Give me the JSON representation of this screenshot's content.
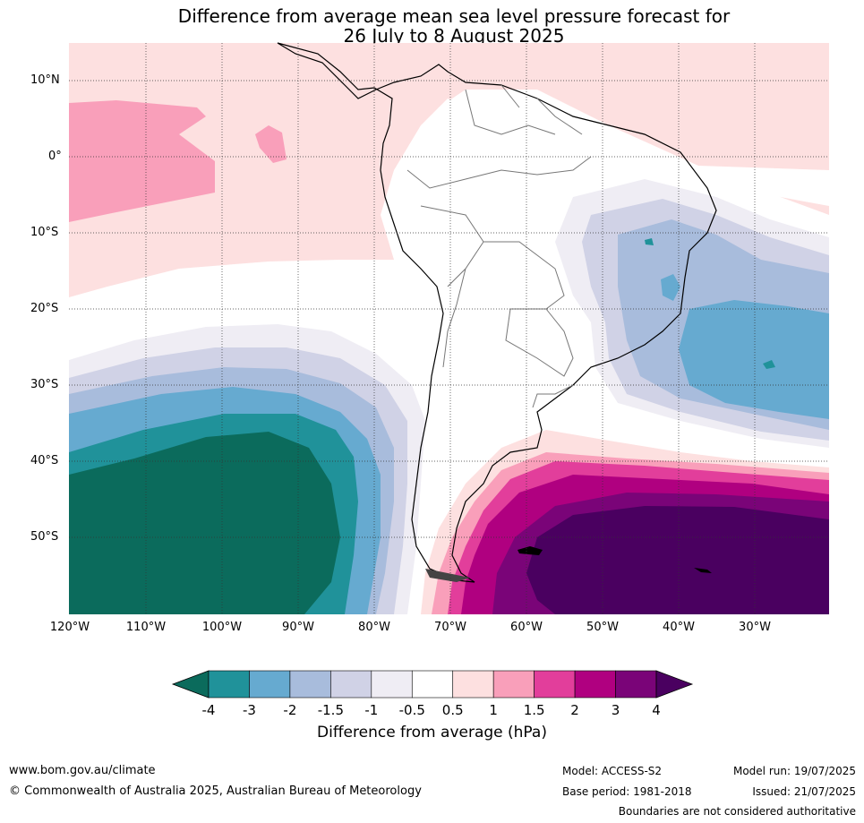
{
  "title_line1": "Difference from average mean sea level pressure forecast for",
  "title_line2": "26 July to 8 August 2025",
  "lat_labels": [
    "10°N",
    "0°",
    "10°S",
    "20°S",
    "30°S",
    "40°S",
    "50°S"
  ],
  "lon_labels": [
    "120°W",
    "110°W",
    "100°W",
    "90°W",
    "80°W",
    "70°W",
    "60°W",
    "50°W",
    "40°W",
    "30°W"
  ],
  "colorbar": {
    "title": "Difference from average (hPa)",
    "tick_labels": [
      "-4",
      "-3",
      "-2",
      "-1.5",
      "-1",
      "-0.5",
      "0.5",
      "1",
      "1.5",
      "2",
      "3",
      "4"
    ],
    "colors": [
      "#0b6b5c",
      "#20929a",
      "#66aad0",
      "#a8bcdc",
      "#d0d2e6",
      "#efedf4",
      "#ffffff",
      "#fde0e0",
      "#f99fba",
      "#e23e9b",
      "#b00080",
      "#7a0478",
      "#4a0060"
    ]
  },
  "footer": {
    "website": "www.bom.gov.au/climate",
    "copyright": "© Commonwealth of Australia 2025, Australian Bureau of Meteorology",
    "model": "Model: ACCESS-S2",
    "base_period": "Base period: 1981-2018",
    "model_run": "Model run: 19/07/2025",
    "issued": "Issued: 21/07/2025",
    "disclaimer": "Boundaries are not considered authoritative"
  }
}
